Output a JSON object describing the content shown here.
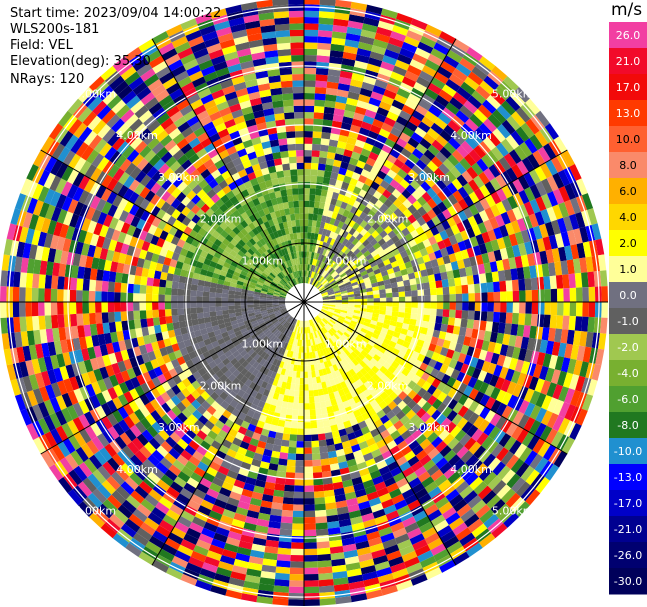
{
  "header": {
    "start_time": "Start time: 2023/09/04 14:00:22",
    "instrument": "WLS200s-181",
    "field": "Field: VEL",
    "elevation": "Elevation(deg): 35.30",
    "nrays": "NRays: 120"
  },
  "colorbar": {
    "unit": "m/s",
    "ticks": [
      "26.0",
      "21.0",
      "17.0",
      "13.0",
      "10.0",
      "8.0",
      "6.0",
      "4.0",
      "2.0",
      "1.0",
      "0.0",
      "-1.0",
      "-2.0",
      "-4.0",
      "-6.0",
      "-8.0",
      "-10.0",
      "-13.0",
      "-17.0",
      "-21.0",
      "-26.0",
      "-30.0"
    ],
    "colors": [
      "#f23fa2",
      "#f20a2a",
      "#f20a0a",
      "#ff3a00",
      "#ff6030",
      "#fa8a6a",
      "#ffb000",
      "#ffd700",
      "#ffff00",
      "#ffff99",
      "#707080",
      "#606060",
      "#a0c850",
      "#78b030",
      "#50a030",
      "#207820",
      "#2090d0",
      "#0000ff",
      "#0000c8",
      "#000090",
      "#000070",
      "#00005a"
    ]
  },
  "chart_data": {
    "type": "heatmap",
    "projection": "polar-ppi",
    "field": "VEL",
    "unit": "m/s",
    "nrays": 120,
    "elevation_deg": 35.3,
    "range_rings": [
      {
        "label": "1.00km",
        "range_km": 1.0
      },
      {
        "label": "2.00km",
        "range_km": 2.0
      },
      {
        "label": "3.00km",
        "range_km": 3.0
      },
      {
        "label": "4.00km",
        "range_km": 4.0
      },
      {
        "label": "5.00km",
        "range_km": 5.0
      }
    ],
    "max_range_km": 5.15,
    "colorbar_range": [
      -30.0,
      26.0
    ],
    "near_field": {
      "northwest_sector": "green (-2 to -8 m/s)",
      "southeast_sector": "yellow (1 to 2 m/s)",
      "southwest_sector": "grey (0 to -1 m/s)"
    },
    "far_field": "noisy, all colors"
  }
}
